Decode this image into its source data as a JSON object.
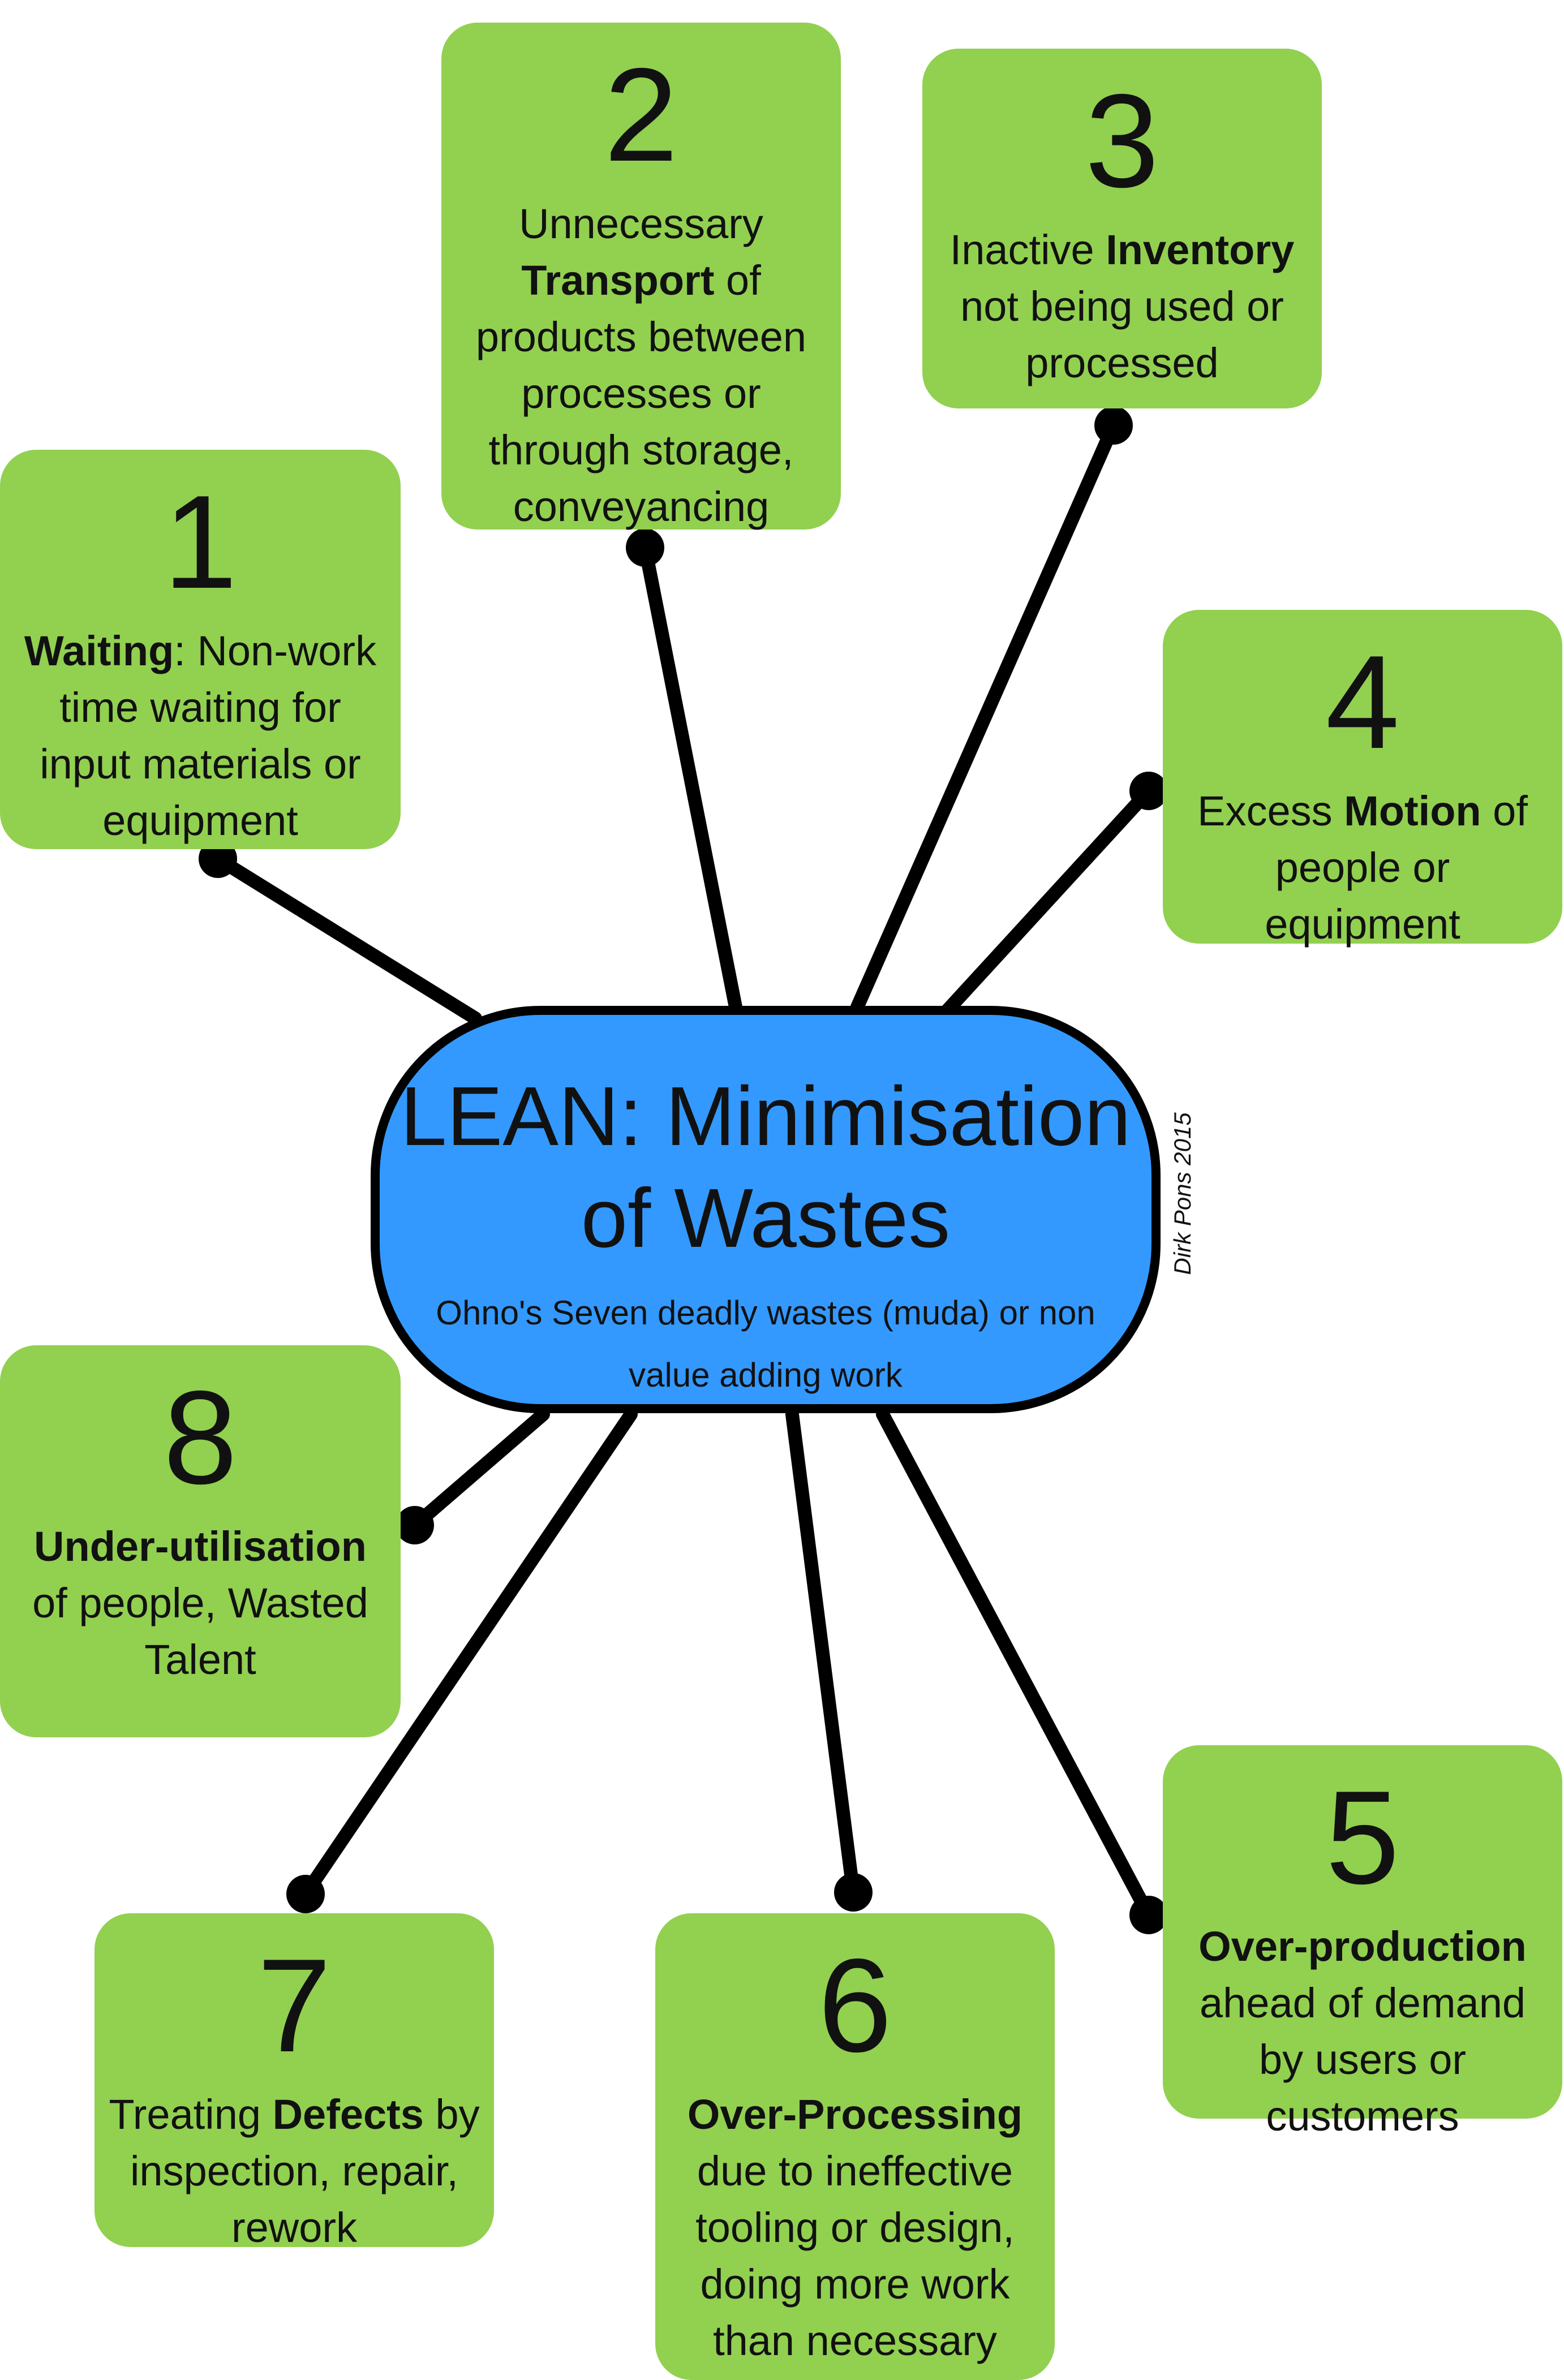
{
  "center": {
    "title_line1": "LEAN: Minimisation",
    "title_line2": "of Wastes",
    "subtitle": "Ohno's Seven deadly wastes (muda) or non value adding work"
  },
  "credit": "Dirk Pons 2015",
  "colors": {
    "box_fill": "#92d050",
    "center_fill": "#3399ff",
    "line": "#000000"
  },
  "wastes": [
    {
      "number": "1",
      "keyword": "Waiting",
      "before": "",
      "after": ": Non-work time waiting for input materials or equipment"
    },
    {
      "number": "2",
      "keyword": "Transport",
      "before": "Unnecessary ",
      "after": " of products between processes or through storage, conveyancing"
    },
    {
      "number": "3",
      "keyword": "Inventory",
      "before": "Inactive ",
      "after": " not being used or processed"
    },
    {
      "number": "4",
      "keyword": "Motion",
      "before": "Excess ",
      "after": " of people or equipment"
    },
    {
      "number": "5",
      "keyword": "Over-production",
      "before": "",
      "after": " ahead of demand by users or customers"
    },
    {
      "number": "6",
      "keyword": "Over-Processing",
      "before": "",
      "after": " due to ineffective tooling or design, doing more work than necessary"
    },
    {
      "number": "7",
      "keyword": "Defects",
      "before": "Treating ",
      "after": " by inspection, repair, rework"
    },
    {
      "number": "8",
      "keyword": "Under-utilisation",
      "before": "",
      "after": " of people, Wasted Talent"
    }
  ]
}
